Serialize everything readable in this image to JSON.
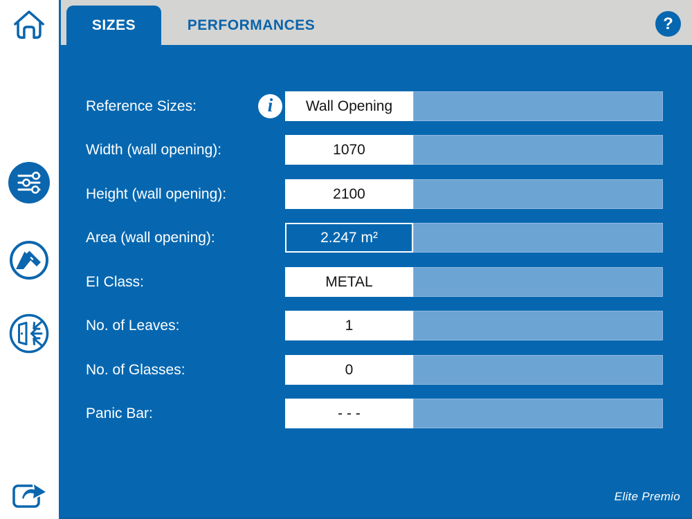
{
  "app": {
    "colors": {
      "primary_blue": "#0667B0",
      "light_bar_blue": "#6CA4D4",
      "tabbar_gray": "#D4D4D2",
      "icon_blue": "#0B66AE",
      "white": "#FFFFFF"
    }
  },
  "sidebar": {
    "icons": [
      {
        "name": "home-icon"
      },
      {
        "name": "sliders-parameters-icon"
      },
      {
        "name": "caliper-measure-icon"
      },
      {
        "name": "door-exit-icon"
      },
      {
        "name": "share-export-icon"
      }
    ]
  },
  "tabs": {
    "sizes": {
      "label": "SIZES",
      "active": true
    },
    "performances": {
      "label": "PERFORMANCES",
      "active": false
    },
    "help_glyph": "?"
  },
  "form": {
    "rows": [
      {
        "label": "Reference Sizes:",
        "value": "Wall Opening",
        "has_info_icon": true,
        "style": "input"
      },
      {
        "label": "Width (wall opening):",
        "value": "1070",
        "has_info_icon": false,
        "style": "input"
      },
      {
        "label": "Height (wall opening):",
        "value": "2100",
        "has_info_icon": false,
        "style": "input"
      },
      {
        "label": "Area (wall opening):",
        "value": "2.247 m²",
        "has_info_icon": false,
        "style": "readonly"
      },
      {
        "label": "EI Class:",
        "value": "METAL",
        "has_info_icon": false,
        "style": "input"
      },
      {
        "label": "No. of Leaves:",
        "value": "1",
        "has_info_icon": false,
        "style": "input"
      },
      {
        "label": "No. of Glasses:",
        "value": "0",
        "has_info_icon": false,
        "style": "input"
      },
      {
        "label": "Panic Bar:",
        "value": "- - -",
        "has_info_icon": false,
        "style": "input"
      }
    ],
    "info_glyph": "i"
  },
  "footer": {
    "brand": "Elite Premio"
  }
}
